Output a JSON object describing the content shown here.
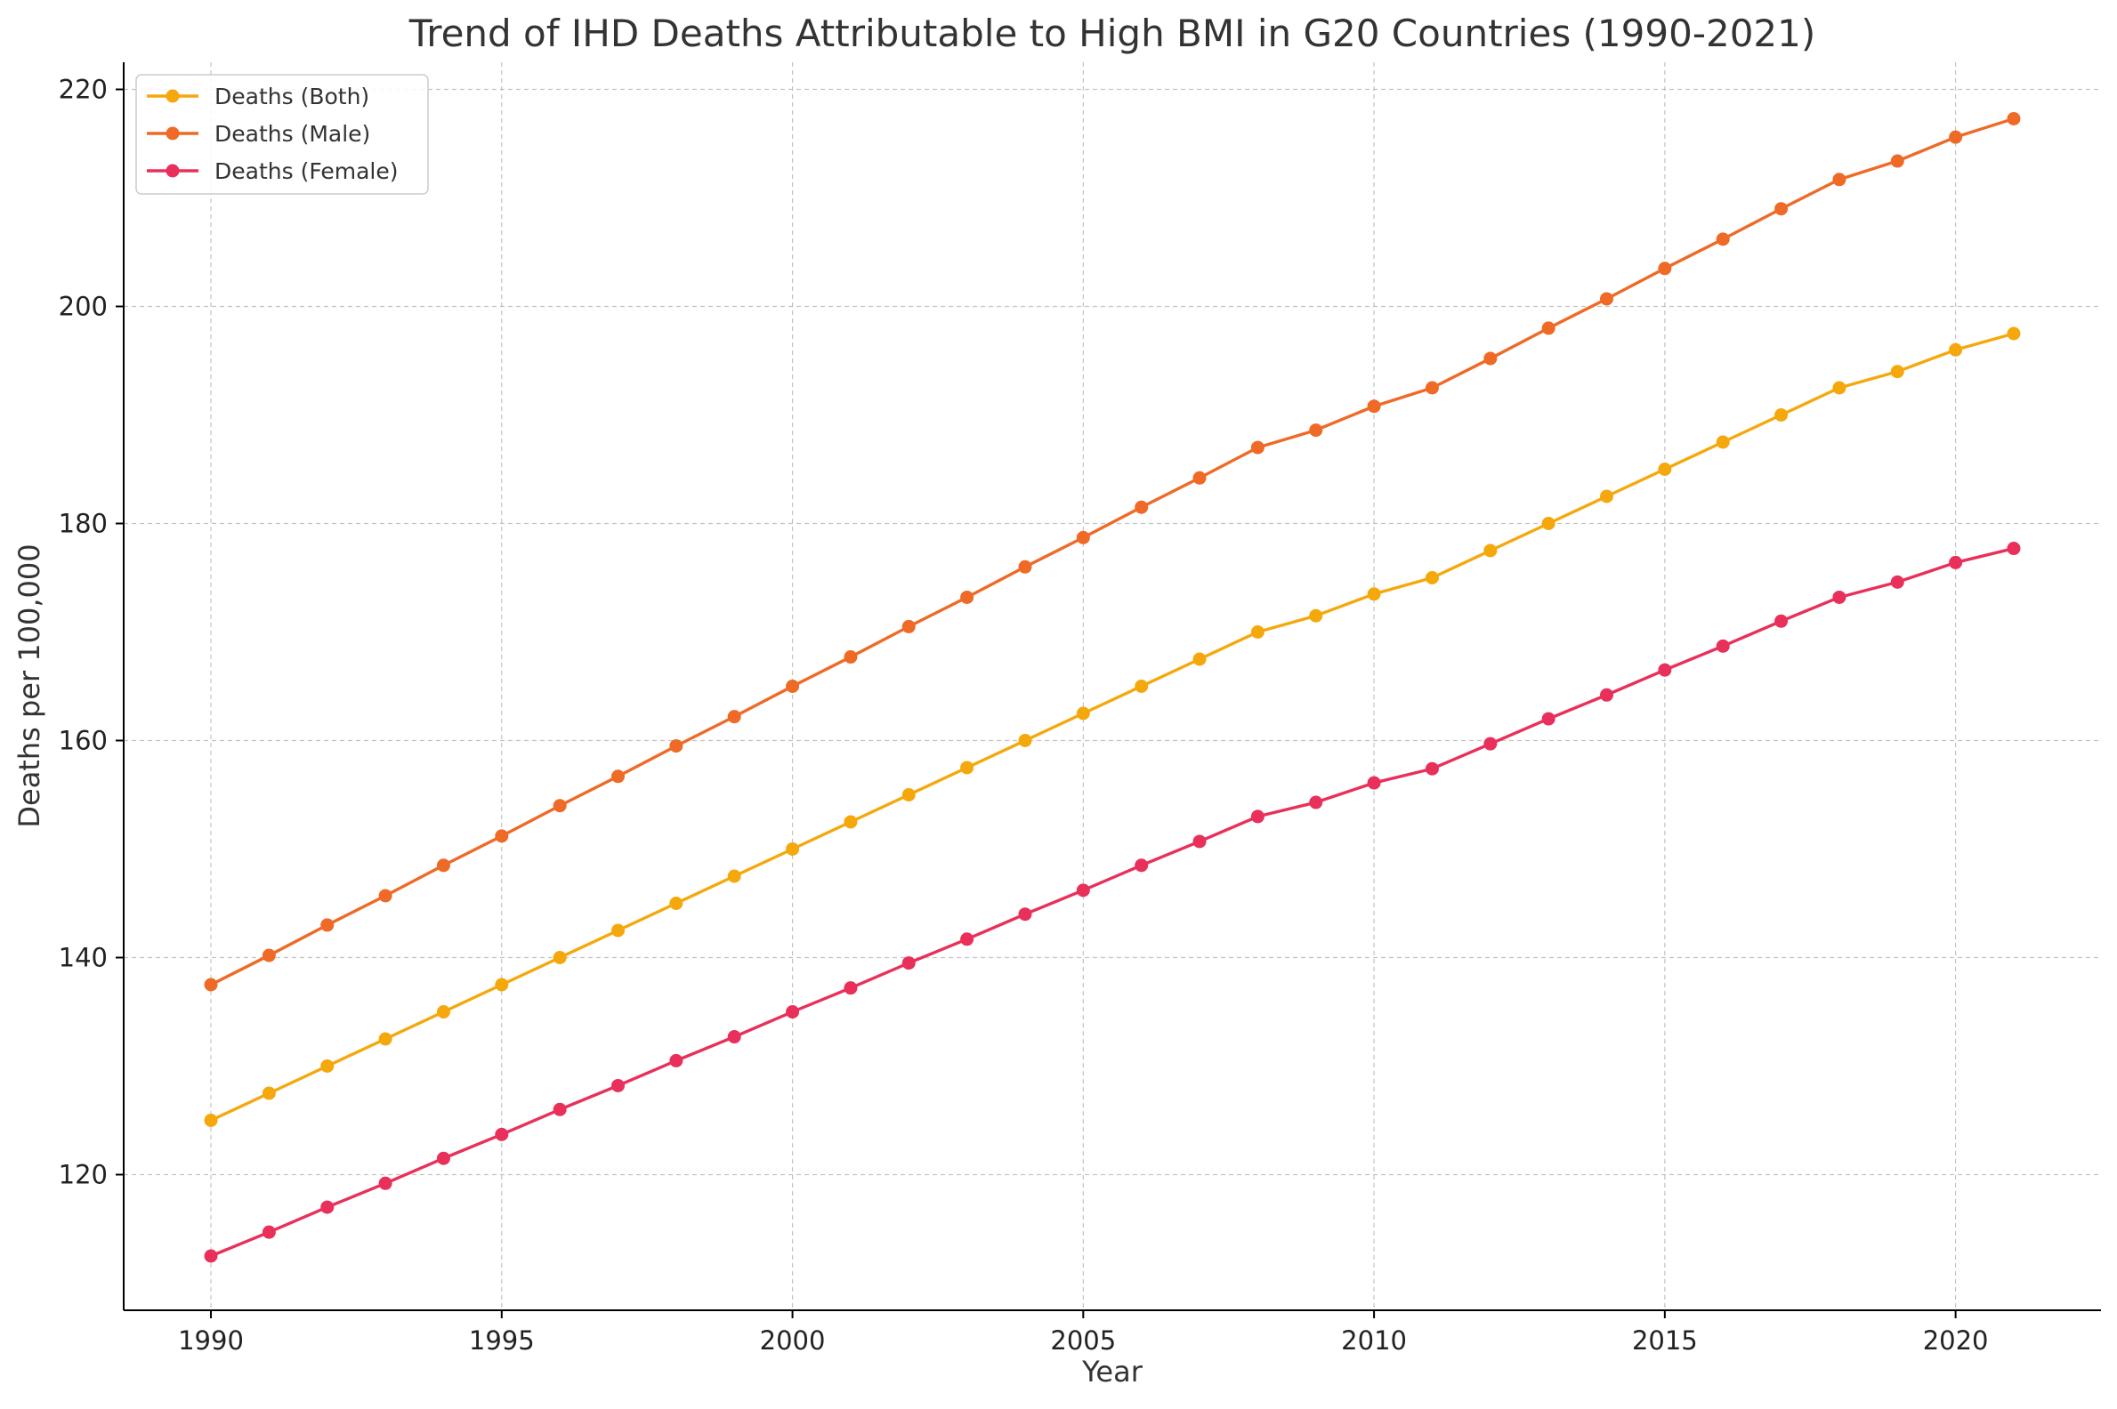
{
  "chart_data": {
    "type": "line",
    "title": "Trend of IHD Deaths Attributable to High BMI in G20 Countries (1990-2021)",
    "xlabel": "Year",
    "ylabel": "Deaths per 100,000",
    "xlim": [
      1988.5,
      2022.5
    ],
    "ylim": [
      107.5,
      222.5
    ],
    "xticks": [
      1990,
      1995,
      2000,
      2005,
      2010,
      2015,
      2020
    ],
    "yticks": [
      120,
      140,
      160,
      180,
      200,
      220
    ],
    "grid": true,
    "legend_position": "top-left",
    "x": [
      1990,
      1991,
      1992,
      1993,
      1994,
      1995,
      1996,
      1997,
      1998,
      1999,
      2000,
      2001,
      2002,
      2003,
      2004,
      2005,
      2006,
      2007,
      2008,
      2009,
      2010,
      2011,
      2012,
      2013,
      2014,
      2015,
      2016,
      2017,
      2018,
      2019,
      2020,
      2021
    ],
    "series": [
      {
        "name": "Deaths (Both)",
        "color": "#F5A80C",
        "values": [
          125,
          127.5,
          130,
          132.5,
          135,
          137.5,
          140,
          142.5,
          145,
          147.5,
          150,
          152.5,
          155,
          157.5,
          160,
          162.5,
          165,
          167.5,
          170,
          171.5,
          173.5,
          175,
          177.5,
          180,
          182.5,
          185,
          187.5,
          190,
          192.5,
          194,
          196,
          197.5
        ]
      },
      {
        "name": "Deaths (Male)",
        "color": "#EE6A26",
        "values": [
          137.5,
          140.2,
          143,
          145.7,
          148.5,
          151.2,
          154,
          156.7,
          159.5,
          162.2,
          165,
          167.7,
          170.5,
          173.2,
          176,
          178.7,
          181.5,
          184.2,
          187,
          188.6,
          190.8,
          192.5,
          195.2,
          198,
          200.7,
          203.5,
          206.2,
          209,
          211.7,
          213.4,
          215.6,
          217.3
        ]
      },
      {
        "name": "Deaths (Female)",
        "color": "#E8305A",
        "values": [
          112.5,
          114.7,
          117,
          119.2,
          121.5,
          123.7,
          126,
          128.2,
          130.5,
          132.7,
          135,
          137.2,
          139.5,
          141.7,
          144,
          146.2,
          148.5,
          150.7,
          153,
          154.3,
          156.1,
          157.4,
          159.7,
          162,
          164.2,
          166.5,
          168.7,
          171,
          173.2,
          174.6,
          176.4,
          177.7
        ]
      }
    ]
  }
}
